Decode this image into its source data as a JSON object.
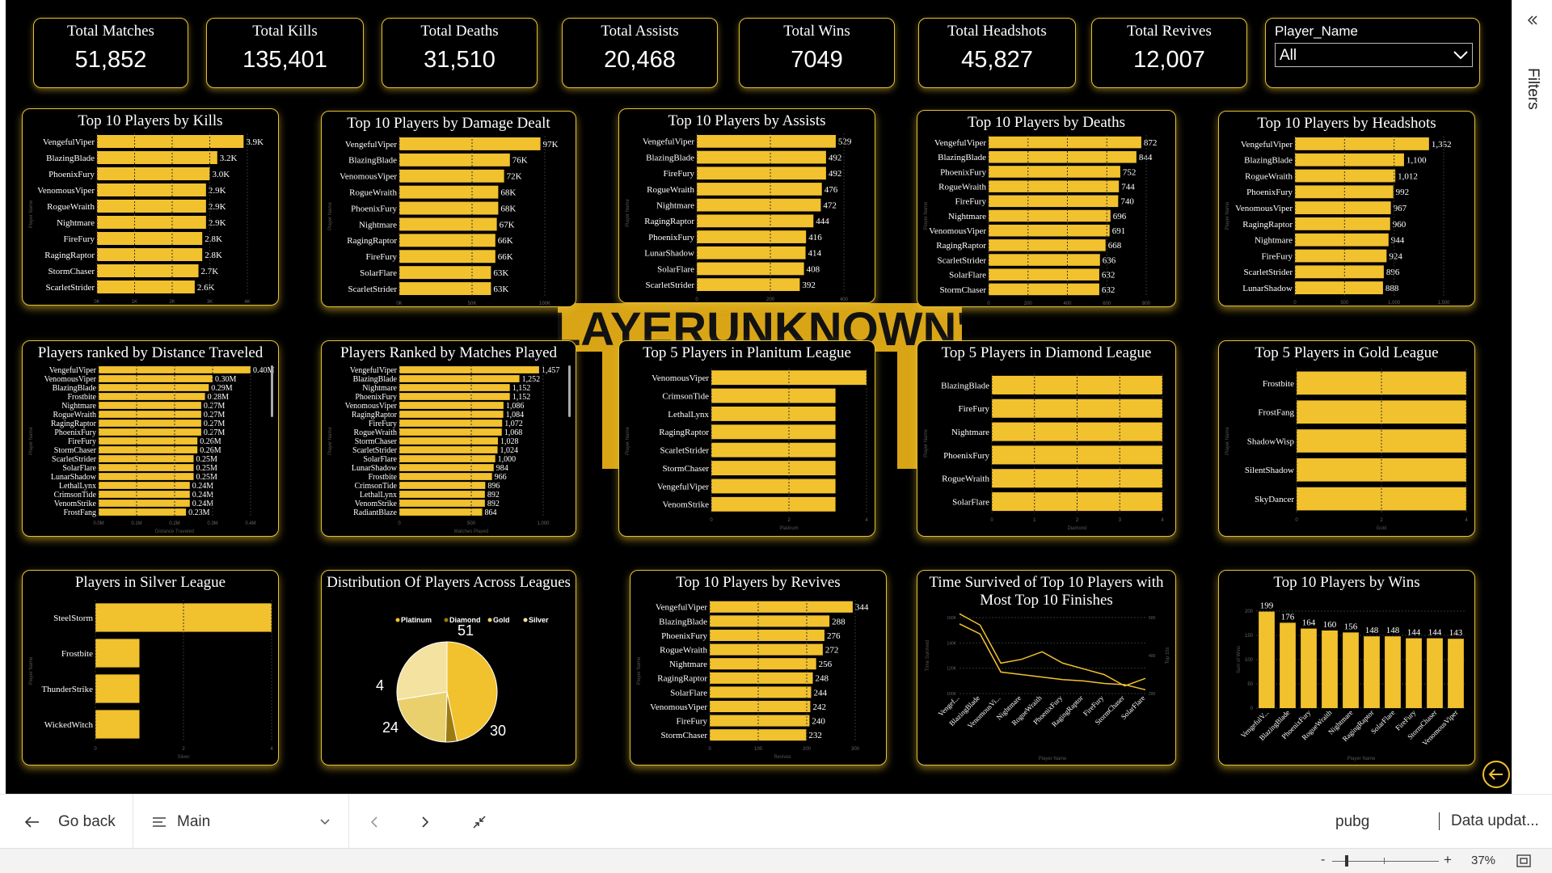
{
  "kpis": [
    {
      "title": "Total Matches",
      "value": "51,852"
    },
    {
      "title": "Total Kills",
      "value": "135,401"
    },
    {
      "title": "Total Deaths",
      "value": "31,510"
    },
    {
      "title": "Total Assists",
      "value": "20,468"
    },
    {
      "title": "Total Wins",
      "value": "7049"
    },
    {
      "title": "Total Headshots",
      "value": "45,827"
    },
    {
      "title": "Total Revives",
      "value": "12,007"
    }
  ],
  "slicer": {
    "title": "Player_Name",
    "value": "All"
  },
  "logo": {
    "text": "PLAYERUNKNOWN'S"
  },
  "colors": {
    "bar": "#f2c12e",
    "border": "#e6c035",
    "pie": [
      "#f2c12e",
      "#9c7b10",
      "#e9d06c",
      "#f3e2a0"
    ]
  },
  "chart_data": [
    {
      "type": "bar",
      "title": "Top 10 Players by Kills",
      "ylabel": "Player Name",
      "xlabel": "Kills",
      "categories": [
        "VengefulViper",
        "BlazingBlade",
        "PhoenixFury",
        "VenomousViper",
        "RogueWraith",
        "Nightmare",
        "FireFury",
        "RagingRaptor",
        "StormChaser",
        "ScarletStrider"
      ],
      "values": [
        3900,
        3200,
        3000,
        2900,
        2900,
        2900,
        2800,
        2800,
        2700,
        2600
      ],
      "labels": [
        "3.9K",
        "3.2K",
        "3.0K",
        "2.9K",
        "2.9K",
        "2.9K",
        "2.8K",
        "2.8K",
        "2.7K",
        "2.6K"
      ],
      "xticks": [
        "0K",
        "1K",
        "2K",
        "3K",
        "4K"
      ],
      "xlim": [
        0,
        4000
      ]
    },
    {
      "type": "bar",
      "title": "Top 10 Players by Damage Dealt",
      "ylabel": "Player Name",
      "xlabel": "Damage Dealt",
      "categories": [
        "VengefulViper",
        "BlazingBlade",
        "VenomousViper",
        "RogueWraith",
        "PhoenixFury",
        "Nightmare",
        "RagingRaptor",
        "FireFury",
        "SolarFlare",
        "ScarletStrider"
      ],
      "values": [
        97000,
        76000,
        72000,
        68000,
        68000,
        67000,
        66000,
        66000,
        63000,
        63000
      ],
      "labels": [
        "97K",
        "76K",
        "72K",
        "68K",
        "68K",
        "67K",
        "66K",
        "66K",
        "63K",
        "63K"
      ],
      "xticks": [
        "0K",
        "50K",
        "100K"
      ],
      "xlim": [
        0,
        100000
      ]
    },
    {
      "type": "bar",
      "title": "Top 10 Players by Assists",
      "ylabel": "Player Name",
      "xlabel": "Assists",
      "categories": [
        "VengefulViper",
        "BlazingBlade",
        "FireFury",
        "RogueWraith",
        "Nightmare",
        "RagingRaptor",
        "PhoenixFury",
        "LunarShadow",
        "SolarFlare",
        "ScarletStrider"
      ],
      "values": [
        529,
        492,
        492,
        476,
        472,
        444,
        416,
        414,
        408,
        392
      ],
      "labels": [
        "529",
        "492",
        "492",
        "476",
        "472",
        "444",
        "416",
        "414",
        "408",
        "392"
      ],
      "xticks": [
        "0",
        "200",
        "400"
      ],
      "xlim": [
        0,
        560
      ]
    },
    {
      "type": "bar",
      "title": "Top 10 Players by Deaths",
      "ylabel": "Player Name",
      "xlabel": "Deaths",
      "categories": [
        "VengefulViper",
        "BlazingBlade",
        "PhoenixFury",
        "RogueWraith",
        "FireFury",
        "Nightmare",
        "VenomousViper",
        "RagingRaptor",
        "ScarletStrider",
        "SolarFlare",
        "StormChaser"
      ],
      "values": [
        872,
        844,
        752,
        744,
        740,
        696,
        691,
        668,
        636,
        632,
        632
      ],
      "labels": [
        "872",
        "844",
        "752",
        "744",
        "740",
        "696",
        "691",
        "668",
        "636",
        "632",
        "632"
      ],
      "xticks": [
        "0",
        "200",
        "400",
        "600",
        "800"
      ],
      "xlim": [
        0,
        900
      ]
    },
    {
      "type": "bar",
      "title": "Top 10 Players by Headshots",
      "ylabel": "Player Name",
      "xlabel": "Sum of Headshots",
      "categories": [
        "VengefulViper",
        "BlazingBlade",
        "RogueWraith",
        "PhoenixFury",
        "VenomousViper",
        "RagingRaptor",
        "Nightmare",
        "FireFury",
        "ScarletStrider",
        "LunarShadow"
      ],
      "values": [
        1352,
        1100,
        1012,
        992,
        967,
        960,
        944,
        924,
        896,
        888
      ],
      "labels": [
        "1,352",
        "1,100",
        "1,012",
        "992",
        "967",
        "960",
        "944",
        "924",
        "896",
        "888"
      ],
      "xticks": [
        "0",
        "500",
        "1,000",
        "1,500"
      ],
      "xlim": [
        0,
        1500
      ]
    },
    {
      "type": "bar",
      "title": "Players ranked by Distance Traveled",
      "ylabel": "Player Name",
      "xlabel": "Distance Traveled",
      "categories": [
        "VengefulViper",
        "VenomousViper",
        "BlazingBlade",
        "Frostbite",
        "Nightmare",
        "RogueWraith",
        "RagingRaptor",
        "PhoenixFury",
        "FireFury",
        "StormChaser",
        "ScarletStrider",
        "SolarFlare",
        "LunarShadow",
        "LethalLynx",
        "CrimsonTide",
        "VenomStrike",
        "FrostFang"
      ],
      "values": [
        0.4,
        0.3,
        0.29,
        0.28,
        0.27,
        0.27,
        0.27,
        0.27,
        0.26,
        0.26,
        0.25,
        0.25,
        0.25,
        0.24,
        0.24,
        0.24,
        0.23
      ],
      "labels": [
        "0.40M",
        "0.30M",
        "0.29M",
        "0.28M",
        "0.27M",
        "0.27M",
        "0.27M",
        "0.27M",
        "0.26M",
        "0.26M",
        "0.25M",
        "0.25M",
        "0.25M",
        "0.24M",
        "0.24M",
        "0.24M",
        "0.23M"
      ],
      "xticks": [
        "0.0M",
        "0.1M",
        "0.2M",
        "0.3M",
        "0.4M"
      ],
      "xlim": [
        0,
        0.4
      ]
    },
    {
      "type": "bar",
      "title": "Players Ranked by Matches Played",
      "ylabel": "Player Name",
      "xlabel": "Matches Played",
      "categories": [
        "VengefulViper",
        "BlazingBlade",
        "Nightmare",
        "PhoenixFury",
        "VenomousViper",
        "RagingRaptor",
        "FireFury",
        "RogueWraith",
        "StormChaser",
        "ScarletStrider",
        "SolarFlare",
        "LunarShadow",
        "Frostbite",
        "CrimsonTide",
        "LethalLynx",
        "VenomStrike",
        "RadiantBlaze"
      ],
      "values": [
        1457,
        1252,
        1152,
        1152,
        1086,
        1084,
        1072,
        1068,
        1028,
        1024,
        1000,
        984,
        966,
        896,
        892,
        892,
        864
      ],
      "labels": [
        "1,457",
        "1,252",
        "1,152",
        "1,152",
        "1,086",
        "1,084",
        "1,072",
        "1,068",
        "1,028",
        "1,024",
        "1,000",
        "984",
        "966",
        "896",
        "892",
        "892",
        "864"
      ],
      "xticks": [
        "0",
        "500",
        "1,000"
      ],
      "xlim": [
        0,
        1500
      ]
    },
    {
      "type": "bar",
      "title": "Top 5 Players in Planitum League",
      "ylabel": "Player Name",
      "xlabel": "Platinum",
      "categories": [
        "VenomousViper",
        "CrimsonTide",
        "LethalLynx",
        "RagingRaptor",
        "ScarletStrider",
        "StormChaser",
        "VengefulViper",
        "VenomStrike"
      ],
      "values": [
        5,
        4,
        4,
        4,
        4,
        4,
        4,
        4
      ],
      "labels": [],
      "xticks": [
        "0",
        "2",
        "4"
      ],
      "xlim": [
        0,
        5
      ]
    },
    {
      "type": "bar",
      "title": "Top 5 Players in Diamond League",
      "ylabel": "Player Name",
      "xlabel": "Diamond",
      "categories": [
        "BlazingBlade",
        "FireFury",
        "Nightmare",
        "PhoenixFury",
        "RogueWraith",
        "SolarFlare"
      ],
      "values": [
        4,
        4,
        4,
        4,
        4,
        4
      ],
      "labels": [],
      "xticks": [
        "0",
        "1",
        "2",
        "3",
        "4"
      ],
      "xlim": [
        0,
        4
      ]
    },
    {
      "type": "bar",
      "title": "Top 5 Players in Gold League",
      "ylabel": "Player Name",
      "xlabel": "Gold",
      "categories": [
        "Frostbite",
        "FrostFang",
        "ShadowWisp",
        "SilentShadow",
        "SkyDancer"
      ],
      "values": [
        4,
        4,
        4,
        4,
        4
      ],
      "labels": [],
      "xticks": [
        "0",
        "2",
        "4"
      ],
      "xlim": [
        0,
        4
      ]
    },
    {
      "type": "bar",
      "title": "Players in Silver League",
      "ylabel": "Player Name",
      "xlabel": "Silver",
      "categories": [
        "SteelStorm",
        "Frostbite",
        "ThunderStrike",
        "WickedWitch"
      ],
      "values": [
        4,
        1,
        1,
        1
      ],
      "labels": [],
      "xticks": [
        "0",
        "2",
        "4"
      ],
      "xlim": [
        0,
        4
      ]
    },
    {
      "type": "pie",
      "title": "Distribution Of Players Across Leagues",
      "categories": [
        "Platinum",
        "Diamond",
        "Gold",
        "Silver"
      ],
      "values": [
        51,
        4,
        24,
        30
      ],
      "labels": [
        "51",
        "4",
        "24",
        "30"
      ]
    },
    {
      "type": "bar",
      "title": "Top 10 Players by Revives",
      "ylabel": "Player Name",
      "xlabel": "Revives",
      "categories": [
        "VengefulViper",
        "BlazingBlade",
        "PhoenixFury",
        "RogueWraith",
        "Nightmare",
        "RagingRaptor",
        "SolarFlare",
        "VenomousViper",
        "FireFury",
        "StormChaser"
      ],
      "values": [
        344,
        288,
        276,
        272,
        256,
        248,
        244,
        242,
        240,
        232
      ],
      "labels": [
        "344",
        "288",
        "276",
        "272",
        "256",
        "248",
        "244",
        "242",
        "240",
        "232"
      ],
      "xticks": [
        "0",
        "100",
        "200",
        "300"
      ],
      "xlim": [
        0,
        350
      ]
    },
    {
      "type": "line",
      "title": "Time Survived of Top 10 Players with Most Top 10 Finishes",
      "xlabel": "Player Name",
      "ylabel": "Time Survived",
      "y2label": "Top 10s",
      "categories": [
        "VengefulViper",
        "BlazingBlade",
        "VenomousViper",
        "Nightmare",
        "RogueWraith",
        "PhoenixFury",
        "RagingRaptor",
        "FireFury",
        "StormChaser",
        "SolarFlare"
      ],
      "x_tick_labels": [
        "Vengef...",
        "BlazingBlade",
        "VenomousVi...",
        "Nightmare",
        "RogueWraith",
        "PhoenixFury",
        "RagingRaptor",
        "FireFury",
        "StormChaser",
        "SolarFlare"
      ],
      "series": [
        {
          "values": [
            155000,
            147000,
            117000,
            115000,
            113000,
            111000,
            110000,
            108000,
            107000,
            103000
          ]
        },
        {
          "values": [
            620,
            560,
            360,
            380,
            420,
            360,
            330,
            300,
            240,
            280
          ]
        }
      ],
      "yticks": [
        "100K",
        "120K",
        "140K",
        "160K"
      ],
      "y2ticks": [
        "200",
        "400",
        "600"
      ]
    },
    {
      "type": "bar",
      "orientation": "vertical",
      "title": "Top 10 Players by Wins",
      "xlabel": "Player Name",
      "ylabel": "Sum of Wins",
      "categories": [
        "VengefulViper",
        "BlazingBlade",
        "PhoenixFury",
        "RogueWraith",
        "Nightmare",
        "RagingRaptor",
        "SolarFlare",
        "FireFury",
        "StormChaser",
        "VenomousViper"
      ],
      "x_tick_labels": [
        "VengefulV...",
        "BlazingBlade",
        "PhoenixFury",
        "RogueWraith",
        "Nightmare",
        "RagingRaptor",
        "SolarFlare",
        "FireFury",
        "StormChaser",
        "VenomousViper"
      ],
      "values": [
        199,
        176,
        164,
        160,
        156,
        148,
        148,
        144,
        144,
        143
      ],
      "labels": [
        "199",
        "176",
        "164",
        "160",
        "156",
        "148",
        "148",
        "144",
        "144",
        "143"
      ],
      "yticks": [
        "0",
        "50",
        "100",
        "150",
        "200"
      ],
      "ylim": [
        0,
        200
      ]
    }
  ],
  "bottombar": {
    "back": "Go back",
    "page": "Main",
    "report": "pubg",
    "status": "Data updat..."
  },
  "statusbar": {
    "zoom": "37%",
    "minus": "-",
    "plus": "+"
  },
  "filters": {
    "label": "Filters"
  }
}
